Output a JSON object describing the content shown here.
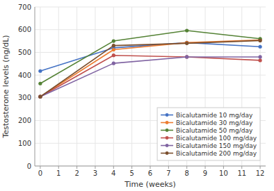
{
  "chart_data": {
    "type": "line",
    "x": [
      0,
      4,
      8,
      12
    ],
    "series": [
      {
        "name": "Bicalutamide 10 mg/day",
        "color": "#4472c4",
        "values": [
          418,
          520,
          543,
          525
        ]
      },
      {
        "name": "Bicalutamide 30 mg/day",
        "color": "#ed7d31",
        "values": [
          305,
          512,
          543,
          555
        ]
      },
      {
        "name": "Bicalutamide 50 mg/day",
        "color": "#548235",
        "values": [
          363,
          550,
          596,
          560
        ]
      },
      {
        "name": "Bicalutamide 100 mg/day",
        "color": "#c0504d",
        "values": [
          305,
          487,
          480,
          465
        ]
      },
      {
        "name": "Bicalutamide 150 mg/day",
        "color": "#8064a2",
        "values": [
          305,
          452,
          480,
          480
        ]
      },
      {
        "name": "Bicalutamide 200 mg/day",
        "color": "#7b4f2e",
        "values": [
          305,
          530,
          540,
          552
        ]
      }
    ],
    "xlabel": "Time (weeks)",
    "ylabel": "Testosterone levels (ng/dL)",
    "xlim": [
      -0.3,
      12.3
    ],
    "ylim": [
      0,
      700
    ],
    "xticks": [
      0,
      1,
      2,
      3,
      4,
      5,
      6,
      7,
      8,
      9,
      10,
      11,
      12
    ],
    "yticks": [
      0,
      100,
      200,
      300,
      400,
      500,
      600,
      700
    ],
    "grid": true,
    "legend": "lower right",
    "marker": "circle"
  }
}
